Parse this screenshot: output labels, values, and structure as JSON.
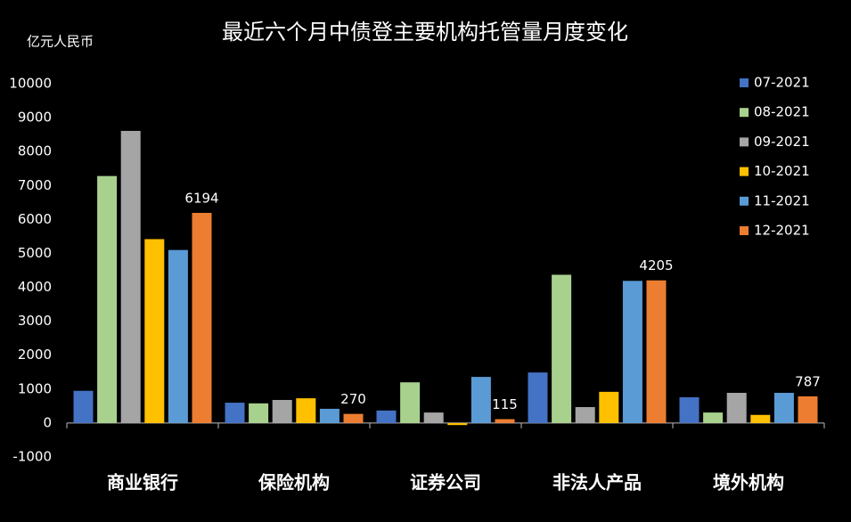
{
  "chart_data": {
    "type": "bar",
    "title": "最近六个月中债登主要机构托管量月度变化",
    "y_unit_label": "亿元人民币",
    "categories": [
      "商业银行",
      "保险机构",
      "证券公司",
      "非法人产品",
      "境外机构"
    ],
    "series": [
      {
        "name": "07-2021",
        "color": "#4472c4",
        "values": [
          950,
          600,
          370,
          1490,
          760
        ]
      },
      {
        "name": "08-2021",
        "color": "#a9d18e",
        "values": [
          7280,
          580,
          1200,
          4370,
          310
        ]
      },
      {
        "name": "09-2021",
        "color": "#a5a5a5",
        "values": [
          8610,
          680,
          310,
          470,
          890
        ]
      },
      {
        "name": "10-2021",
        "color": "#ffc000",
        "values": [
          5420,
          730,
          -60,
          920,
          240
        ]
      },
      {
        "name": "11-2021",
        "color": "#5b9bd5",
        "values": [
          5100,
          420,
          1360,
          4190,
          890
        ]
      },
      {
        "name": "12-2021",
        "color": "#ed7d31",
        "values": [
          6194,
          270,
          115,
          4205,
          787
        ],
        "show_labels": true
      }
    ],
    "ylim": [
      -1000,
      10000
    ],
    "yticks": [
      -1000,
      0,
      1000,
      2000,
      3000,
      4000,
      5000,
      6000,
      7000,
      8000,
      9000,
      10000
    ],
    "grid": false,
    "legend": "right"
  }
}
